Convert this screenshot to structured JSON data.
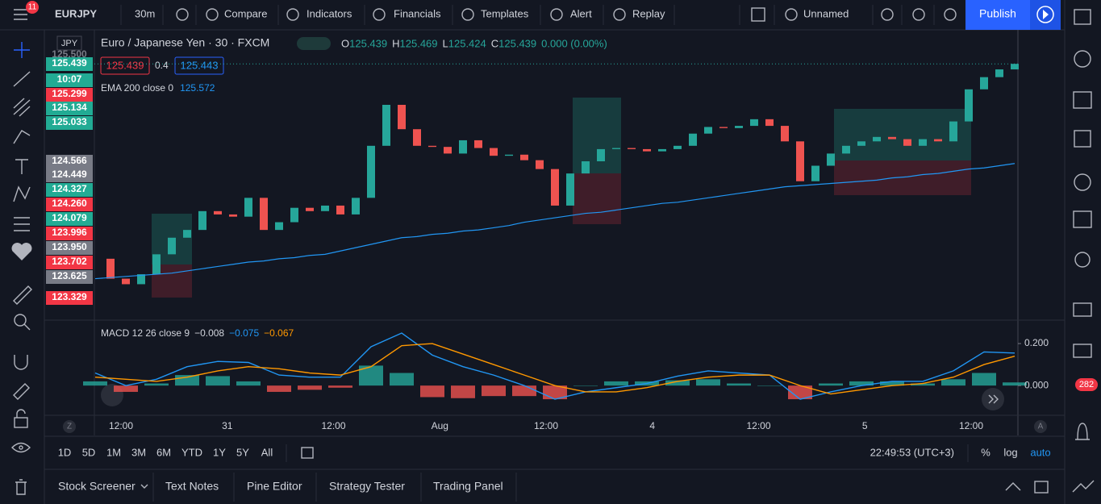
{
  "toolbar": {
    "badge": "11",
    "symbol": "EURJPY",
    "interval": "30m",
    "compare": "Compare",
    "indicators": "Indicators",
    "financials": "Financials",
    "templates": "Templates",
    "alert": "Alert",
    "replay": "Replay",
    "layout": "Unnamed",
    "publish": "Publish"
  },
  "legend": {
    "title": "Euro / Japanese Yen · 30 · FXCM",
    "o_label": "O",
    "o": "125.439",
    "h_label": "H",
    "h": "125.469",
    "l_label": "L",
    "l": "125.424",
    "c_label": "C",
    "c": "125.439",
    "change": "0.000 (0.00%)",
    "bid": "125.439",
    "spread": "0.4",
    "ask": "125.443",
    "ema": "EMA 200 close 0",
    "ema_value": "125.572",
    "macd": "MACD 12 26 close 9",
    "macd_value": "−0.008",
    "macd_signal": "−0.075",
    "macd_hist": "−0.067"
  },
  "currency": "JPY",
  "price_labels": [
    {
      "label": "125.500",
      "color": "none"
    },
    {
      "label": "125.439",
      "color": "#22ab94"
    },
    {
      "label": "10:07",
      "color": "#22ab94"
    },
    {
      "label": "125.299",
      "color": "#f23645"
    },
    {
      "label": "125.134",
      "color": "#22ab94"
    },
    {
      "label": "125.033",
      "color": "#22ab94"
    },
    {
      "label": "124.566",
      "color": "#787b86"
    },
    {
      "label": "124.449",
      "color": "#787b86"
    },
    {
      "label": "124.327",
      "color": "#22ab94"
    },
    {
      "label": "124.260",
      "color": "#f23645"
    },
    {
      "label": "124.079",
      "color": "#22ab94"
    },
    {
      "label": "123.996",
      "color": "#f23645"
    },
    {
      "label": "123.950",
      "color": "#787b86"
    },
    {
      "label": "123.702",
      "color": "#f23645"
    },
    {
      "label": "123.625",
      "color": "#787b86"
    },
    {
      "label": "123.329",
      "color": "#f23645"
    }
  ],
  "chart_data": [
    {
      "type": "candlestick",
      "up_color": "#26a69a",
      "down_color": "#ef5350",
      "values": [
        123.68,
        123.5,
        123.45,
        123.54,
        123.72,
        123.87,
        123.94,
        124.11,
        124.08,
        124.06,
        124.23,
        123.94,
        124.01,
        124.14,
        124.11,
        124.16,
        124.08,
        124.23,
        124.7,
        125.07,
        124.85,
        124.7,
        124.69,
        124.63,
        124.75,
        124.68,
        124.61,
        124.62,
        124.57,
        124.49,
        124.16,
        124.45,
        124.56,
        124.67,
        124.68,
        124.67,
        124.65,
        124.67,
        124.7,
        124.81,
        124.87,
        124.86,
        124.88,
        124.94,
        124.88,
        124.74,
        124.38,
        124.52,
        124.63,
        124.7,
        124.74,
        124.78,
        124.76,
        124.7,
        124.76,
        124.74,
        124.92,
        125.21,
        125.32,
        125.39,
        125.44
      ],
      "series": [
        {
          "color": "#2196f3",
          "values": [
            123.5,
            123.51,
            123.52,
            123.53,
            123.54,
            123.55,
            123.57,
            123.59,
            123.61,
            123.63,
            123.65,
            123.66,
            123.68,
            123.69,
            123.71,
            123.72,
            123.75,
            123.78,
            123.81,
            123.84,
            123.87,
            123.88,
            123.9,
            123.91,
            123.93,
            123.94,
            123.96,
            123.98,
            124.01,
            124.03,
            124.05,
            124.07,
            124.09,
            124.1,
            124.12,
            124.14,
            124.16,
            124.18,
            124.19,
            124.21,
            124.23,
            124.25,
            124.27,
            124.29,
            124.31,
            124.33,
            124.34,
            124.35,
            124.36,
            124.37,
            124.38,
            124.39,
            124.41,
            124.42,
            124.44,
            124.45,
            124.47,
            124.49,
            124.5,
            124.52,
            124.54
          ]
        }
      ],
      "ylim": [
        123.14,
        125.74
      ]
    },
    {
      "type": "bar",
      "positive_color": "#26a69a",
      "negative_color": "#ef5350",
      "values": [
        0.02,
        -0.03,
        0.01,
        0.05,
        0.045,
        0.02,
        -0.03,
        -0.02,
        -0.01,
        0.095,
        0.06,
        -0.055,
        -0.06,
        -0.05,
        -0.05,
        -0.065,
        0.0,
        0.02,
        0.02,
        0.025,
        0.03,
        0.01,
        0.0,
        -0.065,
        0.01,
        0.02,
        0.02,
        0.01,
        0.03,
        0.06,
        0.015
      ],
      "series": [
        {
          "color": "#2196f3",
          "values": [
            0.06,
            0.0,
            0.03,
            0.09,
            0.115,
            0.11,
            0.05,
            0.04,
            0.04,
            0.185,
            0.25,
            0.145,
            0.09,
            0.05,
            0.0,
            -0.065,
            -0.03,
            -0.01,
            0.01,
            0.045,
            0.07,
            0.06,
            0.05,
            -0.065,
            -0.03,
            0.0,
            0.02,
            0.02,
            0.07,
            0.16,
            0.155
          ]
        },
        {
          "color": "#ff9800",
          "values": [
            0.04,
            0.03,
            0.02,
            0.04,
            0.07,
            0.09,
            0.08,
            0.06,
            0.05,
            0.09,
            0.19,
            0.2,
            0.15,
            0.1,
            0.05,
            0.0,
            -0.03,
            -0.03,
            -0.01,
            0.02,
            0.04,
            0.05,
            0.05,
            0.0,
            -0.04,
            -0.02,
            0.0,
            0.01,
            0.04,
            0.1,
            0.14
          ]
        }
      ],
      "ylim": [
        -0.13,
        0.3
      ],
      "yticks": [
        {
          "value": 0.2,
          "label": "0.200"
        },
        {
          "value": 0,
          "label": "0.000"
        }
      ]
    }
  ],
  "time_axis": [
    "12:00",
    "31",
    "12:00",
    "Aug",
    "12:00",
    "4",
    "12:00",
    "5",
    "12:00"
  ],
  "ranges": [
    "1D",
    "5D",
    "1M",
    "3M",
    "6M",
    "YTD",
    "1Y",
    "5Y",
    "All"
  ],
  "clock": "22:49:53 (UTC+3)",
  "percent": "%",
  "log": "log",
  "auto": "auto",
  "tabs": [
    "Stock Screener",
    "Text Notes",
    "Pine Editor",
    "Strategy Tester",
    "Trading Panel"
  ],
  "alerts_badge": "282",
  "corner_left": "Z",
  "corner_right": "A"
}
